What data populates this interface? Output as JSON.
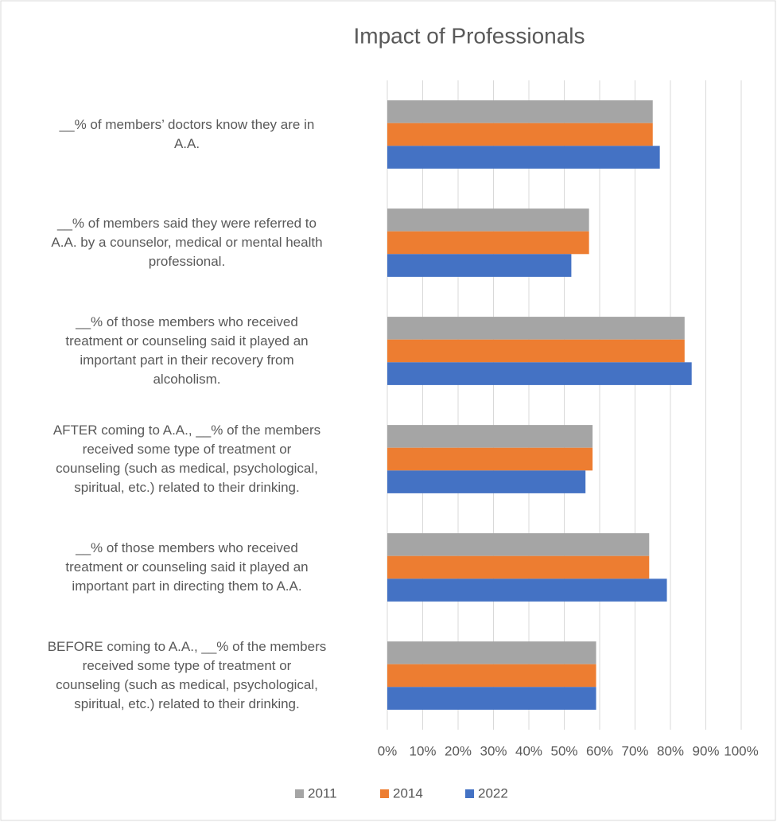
{
  "chart_data": {
    "type": "hbar",
    "title": "Impact of Professionals",
    "categories": [
      "__% of members’ doctors know they are in\nA.A.",
      "__% of members said they were referred to\nA.A. by a counselor, medical or mental health\nprofessional.",
      "__% of those members who received\ntreatment or counseling said it played an\nimportant part in their recovery from\nalcoholism.",
      "AFTER coming to A.A., __% of the members\nreceived some type of treatment or\ncounseling (such as medical, psychological,\nspiritual, etc.) related to their drinking.",
      "__% of those members who received\ntreatment or counseling said it played an\nimportant part in directing them to A.A.",
      "BEFORE coming to A.A., __% of the members\nreceived some type of treatment or\ncounseling (such as medical, psychological,\nspiritual, etc.) related to their drinking."
    ],
    "series": [
      {
        "name": "2011",
        "color": "#a5a5a5",
        "values": [
          75,
          57,
          84,
          58,
          74,
          59
        ]
      },
      {
        "name": "2014",
        "color": "#ed7d31",
        "values": [
          75,
          57,
          84,
          58,
          74,
          59
        ]
      },
      {
        "name": "2022",
        "color": "#4472c4",
        "values": [
          77,
          52,
          86,
          56,
          79,
          59
        ]
      }
    ],
    "xlim": [
      0,
      100
    ],
    "xticks": [
      {
        "value": 0,
        "label": "0%"
      },
      {
        "value": 10,
        "label": "10%"
      },
      {
        "value": 20,
        "label": "20%"
      },
      {
        "value": 30,
        "label": "30%"
      },
      {
        "value": 40,
        "label": "40%"
      },
      {
        "value": 50,
        "label": "50%"
      },
      {
        "value": 60,
        "label": "60%"
      },
      {
        "value": 70,
        "label": "70%"
      },
      {
        "value": 80,
        "label": "80%"
      },
      {
        "value": 90,
        "label": "90%"
      },
      {
        "value": 100,
        "label": "100%"
      }
    ],
    "grid": true,
    "legend": "bottom"
  }
}
